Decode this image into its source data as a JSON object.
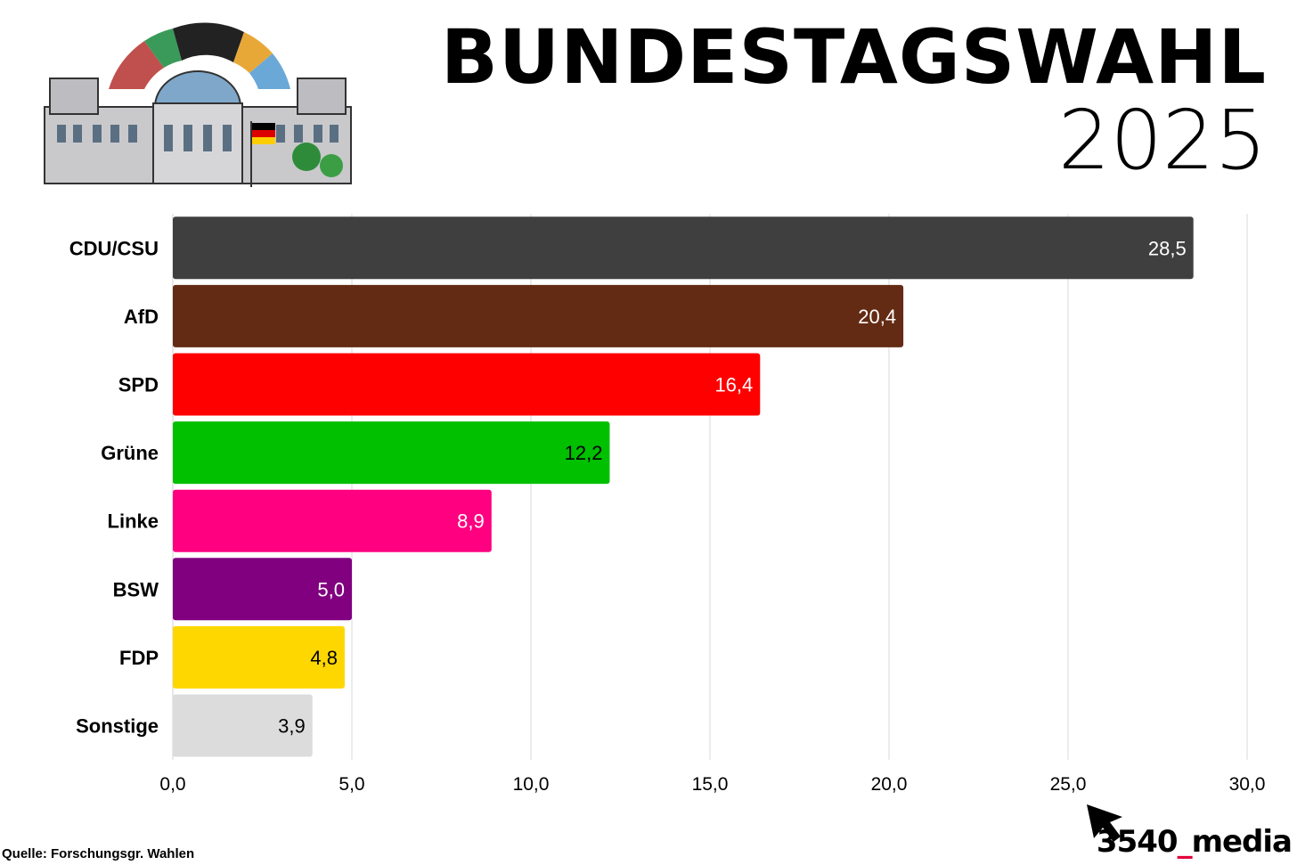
{
  "title": "BUNDESTAGSWAHL",
  "year": "2025",
  "source": "Quelle: Forschungsgr. Wahlen",
  "logo": {
    "prefix": "3540",
    "underscore": "_",
    "suffix": "media",
    "accent_color": "#e2003a"
  },
  "chart_data": {
    "type": "bar",
    "orientation": "horizontal",
    "categories": [
      "CDU/CSU",
      "AfD",
      "SPD",
      "Grüne",
      "Linke",
      "BSW",
      "FDP",
      "Sonstige"
    ],
    "values": [
      28.5,
      20.4,
      16.4,
      12.2,
      8.9,
      5.0,
      4.8,
      3.9
    ],
    "value_labels": [
      "28,5",
      "20,4",
      "16,4",
      "12,2",
      "8,9",
      "5,0",
      "4,8",
      "3,9"
    ],
    "colors": [
      "#3f3f3f",
      "#632b13",
      "#ff0000",
      "#00c000",
      "#ff0080",
      "#800080",
      "#ffd700",
      "#dcdcdc"
    ],
    "label_colors": [
      "#ffffff",
      "#ffffff",
      "#ffffff",
      "#000000",
      "#ffffff",
      "#ffffff",
      "#000000",
      "#000000"
    ],
    "xlim": [
      0,
      30
    ],
    "xticks": [
      0,
      5,
      10,
      15,
      20,
      25,
      30
    ],
    "xtick_labels": [
      "0,0",
      "5,0",
      "10,0",
      "15,0",
      "20,0",
      "25,0",
      "30,0"
    ],
    "grid": true,
    "title": "",
    "xlabel": "",
    "ylabel": ""
  }
}
